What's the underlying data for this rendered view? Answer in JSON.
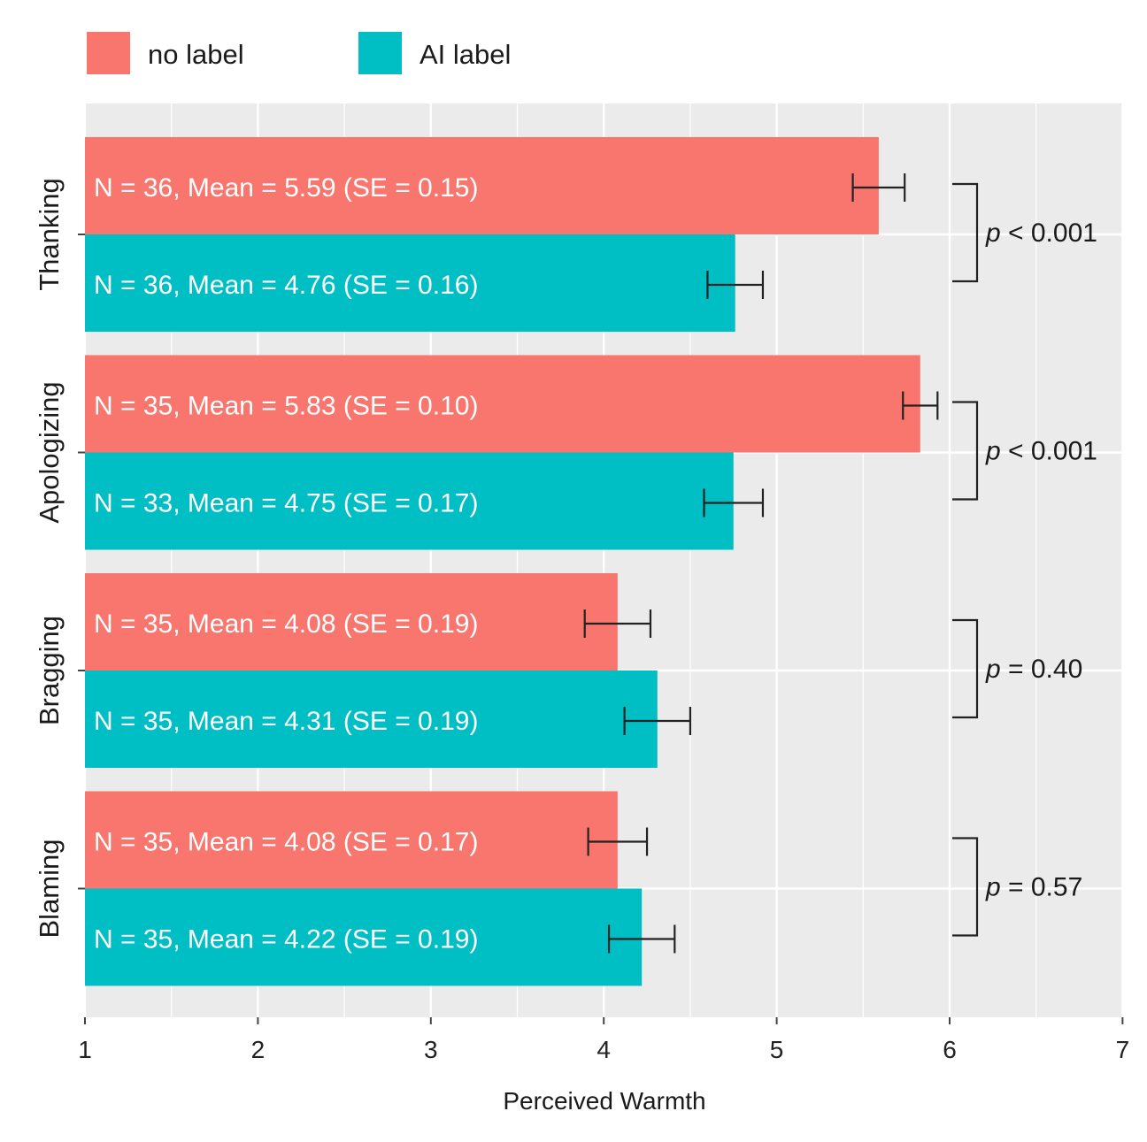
{
  "chart_data": {
    "type": "bar",
    "orientation": "horizontal",
    "xlabel": "Perceived Warmth",
    "ylabel": "",
    "xlim": [
      1,
      7
    ],
    "xticks": [
      "1",
      "2",
      "3",
      "4",
      "5",
      "6",
      "7"
    ],
    "grid": true,
    "legend_position": "top-left",
    "categories": [
      "Thanking",
      "Apologizing",
      "Bragging",
      "Blaming"
    ],
    "series": [
      {
        "name": "no label",
        "color": "#F8766D",
        "values": [
          5.59,
          5.83,
          4.08,
          4.08
        ],
        "se": [
          0.15,
          0.1,
          0.19,
          0.17
        ],
        "labels": [
          "N = 36, Mean = 5.59 (SE = 0.15)",
          "N = 35, Mean = 5.83 (SE = 0.10)",
          "N = 35, Mean = 4.08 (SE = 0.19)",
          "N = 35, Mean = 4.08 (SE = 0.17)"
        ]
      },
      {
        "name": "AI label",
        "color": "#00BFC4",
        "values": [
          4.76,
          4.75,
          4.31,
          4.22
        ],
        "se": [
          0.16,
          0.17,
          0.19,
          0.19
        ],
        "labels": [
          "N = 36, Mean = 4.76 (SE = 0.16)",
          "N = 33, Mean = 4.75 (SE = 0.17)",
          "N = 35, Mean = 4.31 (SE = 0.19)",
          "N = 35, Mean = 4.22 (SE = 0.19)"
        ]
      }
    ],
    "comparisons": [
      {
        "category": "Thanking",
        "p_symbol": "p",
        "p_text": " < 0.001"
      },
      {
        "category": "Apologizing",
        "p_symbol": "p",
        "p_text": " < 0.001"
      },
      {
        "category": "Bragging",
        "p_symbol": "p",
        "p_text": " = 0.40"
      },
      {
        "category": "Blaming",
        "p_symbol": "p",
        "p_text": " = 0.57"
      }
    ],
    "panel_background": "#EBEBEB",
    "grid_color": "#FFFFFF"
  }
}
